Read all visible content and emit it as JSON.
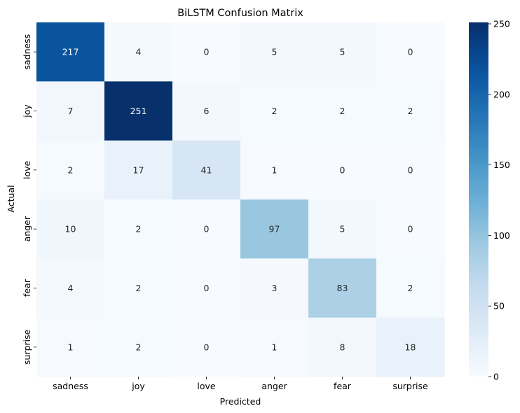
{
  "chart_data": {
    "type": "heatmap",
    "title": "BiLSTM Confusion Matrix",
    "xlabel": "Predicted",
    "ylabel": "Actual",
    "x_categories": [
      "sadness",
      "joy",
      "love",
      "anger",
      "fear",
      "surprise"
    ],
    "y_categories": [
      "sadness",
      "joy",
      "love",
      "anger",
      "fear",
      "surprise"
    ],
    "values": [
      [
        217,
        4,
        0,
        5,
        5,
        0
      ],
      [
        7,
        251,
        6,
        2,
        2,
        2
      ],
      [
        2,
        17,
        41,
        1,
        0,
        0
      ],
      [
        10,
        2,
        0,
        97,
        5,
        0
      ],
      [
        4,
        2,
        0,
        3,
        83,
        2
      ],
      [
        1,
        2,
        0,
        1,
        8,
        18
      ]
    ],
    "colormap": "Blues",
    "vmin": 0,
    "vmax": 251,
    "colorbar_ticks": [
      "0",
      "50",
      "100",
      "150",
      "200",
      "250"
    ],
    "colorbar_tick_values": [
      0,
      50,
      100,
      150,
      200,
      250
    ],
    "colors": {
      "low": "#f7fbff",
      "high": "#08306b",
      "text_dark": "#262626",
      "text_light": "#ffffff"
    }
  }
}
